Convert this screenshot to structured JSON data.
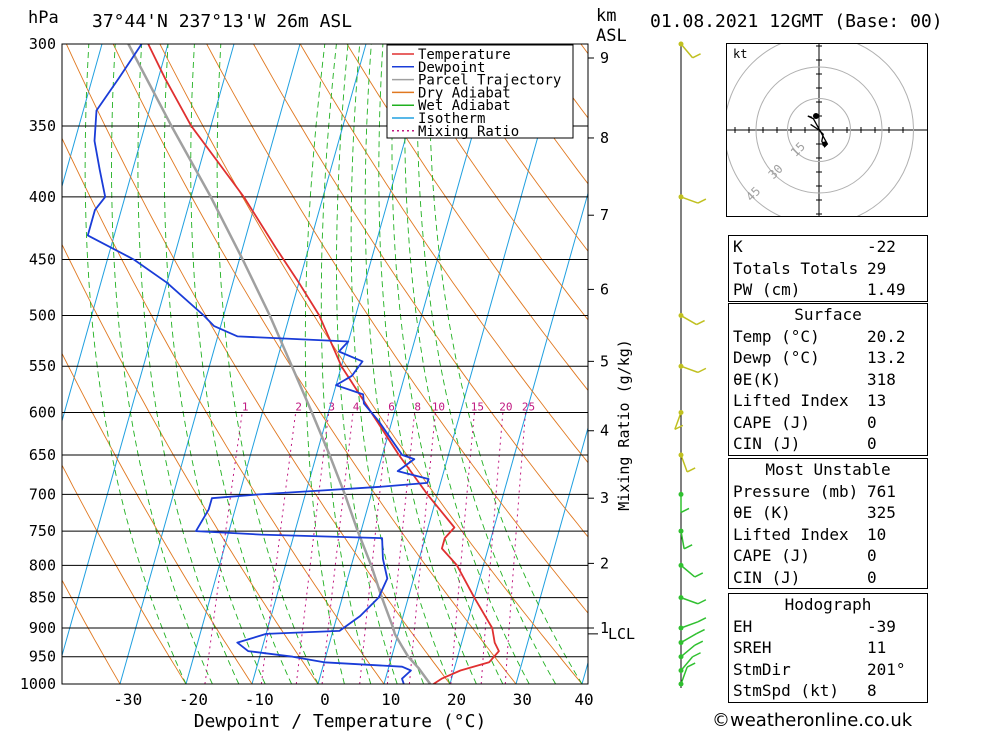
{
  "header": {
    "location": "37°44'N 237°13'W 26m ASL",
    "date": "01.08.2021 12GMT (Base: 00)",
    "hpa_label": "hPa",
    "km_label": "km",
    "asl_label": "ASL"
  },
  "chart_data": {
    "type": "skewt",
    "xlabel": "Dewpoint / Temperature (°C)",
    "ylabel": "hPa",
    "right_axis_label": "Mixing Ratio (g/kg)",
    "xlim": [
      -40,
      40
    ],
    "pressure_levels": [
      300,
      350,
      400,
      450,
      500,
      550,
      600,
      650,
      700,
      750,
      800,
      850,
      900,
      950,
      1000
    ],
    "temperature_ticks": [
      -30,
      -20,
      -10,
      0,
      10,
      20,
      30,
      40
    ],
    "km_ticks": [
      {
        "km": "1",
        "p": 900
      },
      {
        "km": "2",
        "p": 797
      },
      {
        "km": "3",
        "p": 705
      },
      {
        "km": "4",
        "p": 621
      },
      {
        "km": "5",
        "p": 545
      },
      {
        "km": "6",
        "p": 476
      },
      {
        "km": "7",
        "p": 414
      },
      {
        "km": "8",
        "p": 358
      },
      {
        "km": "9",
        "p": 308
      }
    ],
    "lcl_label": "LCL",
    "lcl_pressure": 910,
    "mixing_ratio_labels": [
      "1",
      "2",
      "3",
      "4",
      "6",
      "8",
      "10",
      "15",
      "20",
      "25"
    ],
    "mixing_ratio_values": [
      1,
      2,
      3,
      4,
      6,
      8,
      10,
      15,
      20,
      25
    ],
    "legend": [
      "Temperature",
      "Dewpoint",
      "Parcel Trajectory",
      "Dry Adiabat",
      "Wet Adiabat",
      "Isotherm",
      "Mixing Ratio"
    ],
    "colors": {
      "temperature": "#e03030",
      "dewpoint": "#1a3cd8",
      "parcel": "#a0a0a0",
      "dry_adiabat": "#e07820",
      "wet_adiabat": "#20b020",
      "isotherm": "#20a0e0",
      "mixing_ratio": "#c01880"
    },
    "temperature": [
      [
        1000,
        17.5
      ],
      [
        990,
        18.5
      ],
      [
        975,
        21
      ],
      [
        960,
        25
      ],
      [
        940,
        26
      ],
      [
        925,
        25
      ],
      [
        900,
        24
      ],
      [
        850,
        20
      ],
      [
        800,
        16
      ],
      [
        775,
        13
      ],
      [
        760,
        13
      ],
      [
        745,
        14
      ],
      [
        700,
        8.5
      ],
      [
        650,
        2.5
      ],
      [
        600,
        -3.5
      ],
      [
        550,
        -10
      ],
      [
        500,
        -15.5
      ],
      [
        470,
        -20
      ],
      [
        440,
        -25
      ],
      [
        400,
        -32
      ],
      [
        350,
        -43
      ],
      [
        320,
        -49
      ],
      [
        300,
        -53
      ]
    ],
    "dewpoint": [
      [
        1000,
        13
      ],
      [
        990,
        12.5
      ],
      [
        975,
        13.5
      ],
      [
        968,
        12
      ],
      [
        960,
        0
      ],
      [
        950,
        -5
      ],
      [
        940,
        -12
      ],
      [
        925,
        -14
      ],
      [
        910,
        -10
      ],
      [
        905,
        1
      ],
      [
        880,
        3.5
      ],
      [
        850,
        5.5
      ],
      [
        820,
        6
      ],
      [
        790,
        4.5
      ],
      [
        760,
        3.5
      ],
      [
        755,
        -15
      ],
      [
        750,
        -25
      ],
      [
        720,
        -24
      ],
      [
        705,
        -24
      ],
      [
        700,
        -17
      ],
      [
        695,
        -8
      ],
      [
        690,
        1
      ],
      [
        685,
        8
      ],
      [
        680,
        8
      ],
      [
        670,
        3
      ],
      [
        655,
        5
      ],
      [
        650,
        3
      ],
      [
        610,
        -2
      ],
      [
        590,
        -5
      ],
      [
        580,
        -5.5
      ],
      [
        570,
        -10
      ],
      [
        560,
        -8
      ],
      [
        545,
        -7
      ],
      [
        535,
        -11
      ],
      [
        525,
        -10
      ],
      [
        520,
        -27
      ],
      [
        510,
        -31
      ],
      [
        500,
        -33
      ],
      [
        470,
        -40
      ],
      [
        450,
        -46
      ],
      [
        430,
        -54
      ],
      [
        410,
        -54
      ],
      [
        400,
        -53
      ],
      [
        380,
        -55
      ],
      [
        360,
        -57
      ],
      [
        340,
        -58
      ],
      [
        320,
        -56
      ],
      [
        300,
        -54
      ]
    ],
    "parcel": [
      [
        1000,
        17
      ],
      [
        970,
        14.5
      ],
      [
        950,
        12.5
      ],
      [
        930,
        11
      ],
      [
        910,
        9.5
      ],
      [
        900,
        9
      ],
      [
        850,
        6
      ],
      [
        800,
        3
      ],
      [
        750,
        -0.5
      ],
      [
        700,
        -4
      ],
      [
        650,
        -8
      ],
      [
        600,
        -12.5
      ],
      [
        550,
        -17.5
      ],
      [
        500,
        -23
      ],
      [
        450,
        -29.5
      ],
      [
        400,
        -37
      ],
      [
        350,
        -46
      ],
      [
        300,
        -56
      ]
    ],
    "wind": [
      {
        "p": 1000,
        "dir": 340,
        "spd": 8
      },
      {
        "p": 975,
        "dir": 320,
        "spd": 12
      },
      {
        "p": 950,
        "dir": 310,
        "spd": 12
      },
      {
        "p": 925,
        "dir": 300,
        "spd": 10
      },
      {
        "p": 900,
        "dir": 290,
        "spd": 8
      },
      {
        "p": 850,
        "dir": 250,
        "spd": 12
      },
      {
        "p": 800,
        "dir": 230,
        "spd": 8
      },
      {
        "p": 750,
        "dir": 190,
        "spd": 10
      },
      {
        "p": 700,
        "dir": 180,
        "spd": 8
      },
      {
        "p": 650,
        "dir": 200,
        "spd": 10
      },
      {
        "p": 600,
        "dir": 160,
        "spd": 5
      },
      {
        "p": 550,
        "dir": 250,
        "spd": 5
      },
      {
        "p": 500,
        "dir": 240,
        "spd": 5
      },
      {
        "p": 400,
        "dir": 250,
        "spd": 10
      },
      {
        "p": 300,
        "dir": 220,
        "spd": 10
      }
    ]
  },
  "hodograph": {
    "unit_label": "kt",
    "ring_labels": [
      "15",
      "30",
      "45"
    ],
    "ring_values": [
      15,
      30,
      45
    ],
    "trace": [
      [
        -6,
        4
      ],
      [
        -3,
        2
      ],
      [
        0,
        0
      ],
      [
        3,
        -3
      ],
      [
        2,
        -8
      ],
      [
        4,
        -12
      ],
      [
        6,
        -10
      ],
      [
        -4,
        8
      ],
      [
        -8,
        10
      ],
      [
        -5,
        9
      ]
    ],
    "storm_motion": [
      4,
      -10
    ]
  },
  "indices": {
    "general": [
      {
        "label": "K",
        "value": "-22"
      },
      {
        "label": "Totals Totals",
        "value": "29"
      },
      {
        "label": "PW (cm)",
        "value": "1.49"
      }
    ],
    "surface_title": "Surface",
    "surface": [
      {
        "label": "Temp (°C)",
        "value": "20.2"
      },
      {
        "label": "Dewp (°C)",
        "value": "13.2"
      },
      {
        "label": "θE(K)",
        "value": "318"
      },
      {
        "label": "Lifted Index",
        "value": "13"
      },
      {
        "label": "CAPE (J)",
        "value": "0"
      },
      {
        "label": "CIN (J)",
        "value": "0"
      }
    ],
    "mu_title": "Most Unstable",
    "mu": [
      {
        "label": "Pressure (mb)",
        "value": "761"
      },
      {
        "label": "θE (K)",
        "value": "325"
      },
      {
        "label": "Lifted Index",
        "value": "10"
      },
      {
        "label": "CAPE (J)",
        "value": "0"
      },
      {
        "label": "CIN (J)",
        "value": "0"
      }
    ],
    "hodo_title": "Hodograph",
    "hodo": [
      {
        "label": "EH",
        "value": "-39"
      },
      {
        "label": "SREH",
        "value": "11"
      },
      {
        "label": "StmDir",
        "value": "201°"
      },
      {
        "label": "StmSpd (kt)",
        "value": "8"
      }
    ]
  },
  "footer": {
    "copyright": "©weatheronline.co.uk"
  }
}
